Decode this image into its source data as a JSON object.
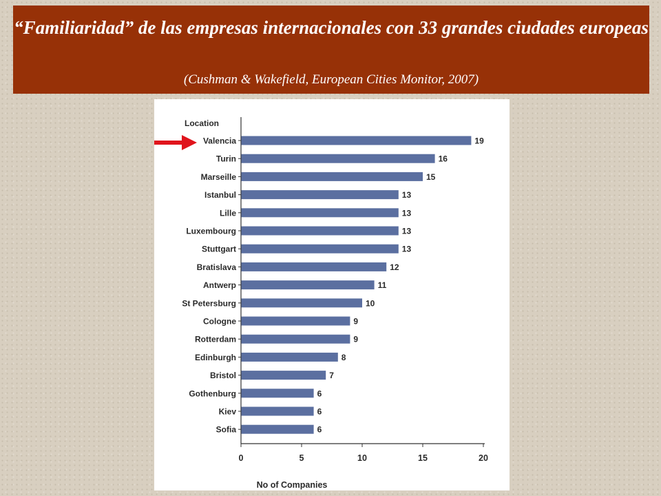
{
  "header": {
    "title": "“Familiaridad” de las empresas internacionales con 33 grandes ciudades europeas",
    "source": "(Cushman & Wakefield, European Cities Monitor, 2007)"
  },
  "colors": {
    "banner": "#973107",
    "bar": "#5b6fa0",
    "arrow": "#e0141c"
  },
  "chart_data": {
    "type": "bar",
    "orientation": "horizontal",
    "categories_title": "Location",
    "categories": [
      "Valencia",
      "Turin",
      "Marseille",
      "Istanbul",
      "Lille",
      "Luxembourg",
      "Stuttgart",
      "Bratislava",
      "Antwerp",
      "St Petersburg",
      "Cologne",
      "Rotterdam",
      "Edinburgh",
      "Bristol",
      "Gothenburg",
      "Kiev",
      "Sofia"
    ],
    "values": [
      19,
      16,
      15,
      13,
      13,
      13,
      13,
      12,
      11,
      10,
      9,
      9,
      8,
      7,
      6,
      6,
      6
    ],
    "value_labels": [
      "19",
      "16",
      "15",
      "13",
      "13",
      "13",
      "13",
      "12",
      "11",
      "10",
      "9",
      "9",
      "8",
      "7",
      "6",
      "6",
      "6"
    ],
    "xlabel": "No of Companies",
    "xlim": [
      0,
      20
    ],
    "xticks": [
      "0",
      "5",
      "10",
      "15",
      "20"
    ],
    "grid": false,
    "highlight": {
      "category": "Valencia",
      "marker": "red-arrow"
    }
  }
}
